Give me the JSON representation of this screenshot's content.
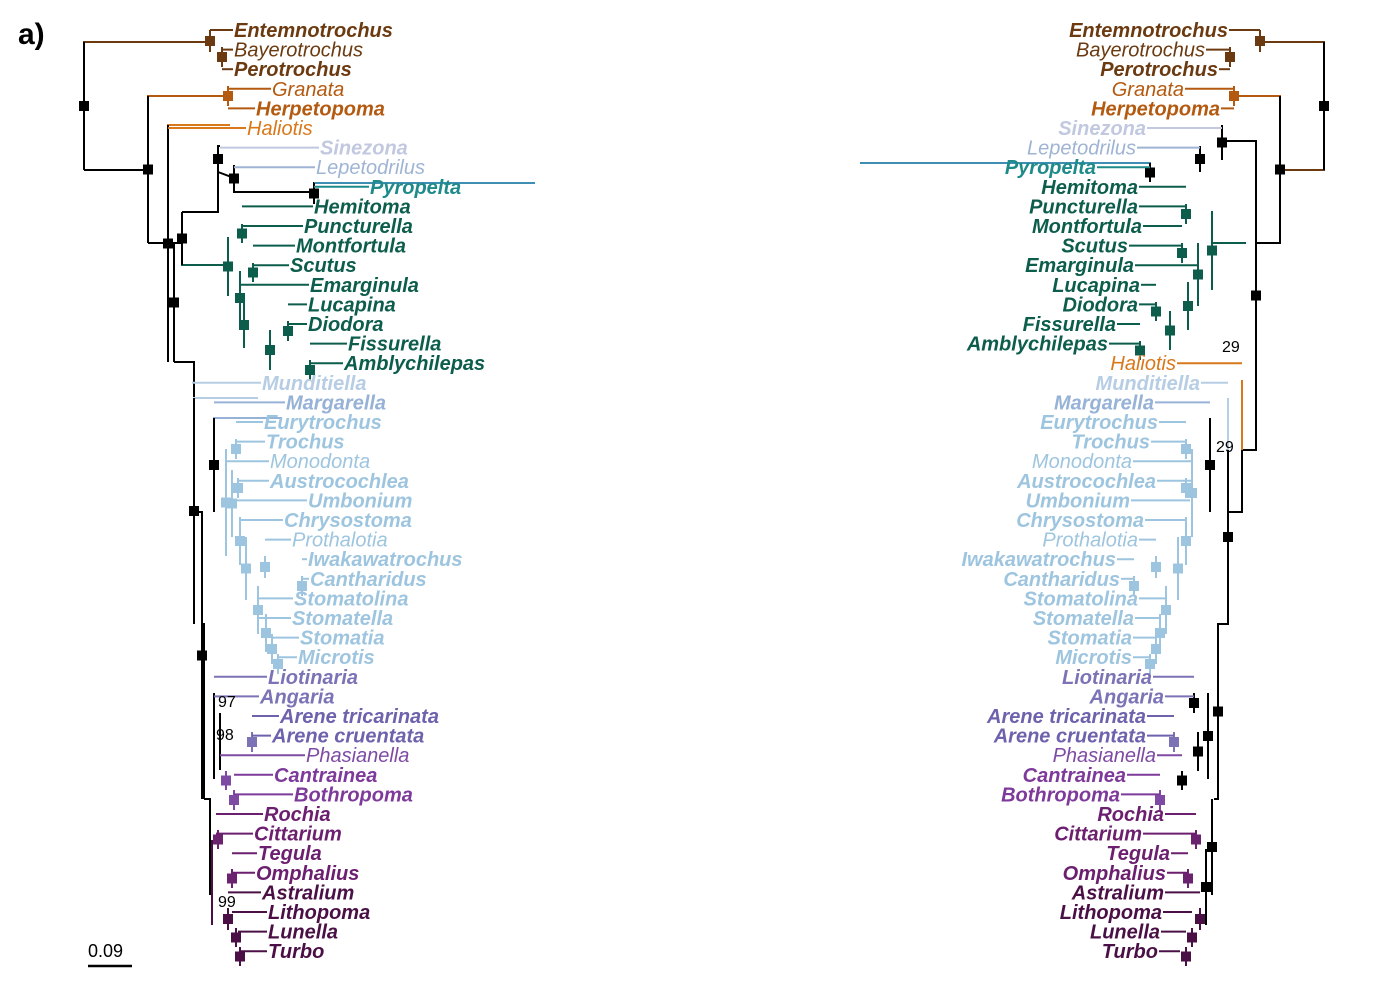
{
  "panel_label": "a)",
  "scale_bar_label": "0.09",
  "colors": {
    "black": "#000000",
    "pleuro": "#6b3a10",
    "neomph": "#b35a10",
    "haliotis": "#d9781a",
    "sinezona": "#c2c8e0",
    "lepeto": "#9fb4d4",
    "pyropelta": "#3f8fb5",
    "fissurellid": "#0d5d4d",
    "trochid": "#9ec5df",
    "munditiella": "#b7cde4",
    "margarella": "#96b2d6",
    "liotiid": "#7b73b5",
    "phasianellid": "#7e4aa3",
    "tegulid": "#6b2370",
    "turbinid": "#4a1046"
  },
  "left_tree": {
    "tips": [
      {
        "name": "Entemnotrochus",
        "bold": true,
        "color": "#6b3a10"
      },
      {
        "name": "Bayerotrochus",
        "bold": false,
        "color": "#6b3a10"
      },
      {
        "name": "Perotrochus",
        "bold": true,
        "color": "#6b3a10"
      },
      {
        "name": "Granata",
        "bold": false,
        "color": "#b35a10"
      },
      {
        "name": "Herpetopoma",
        "bold": true,
        "color": "#b35a10"
      },
      {
        "name": "Haliotis",
        "bold": false,
        "color": "#d9781a"
      },
      {
        "name": "Sinezona",
        "bold": true,
        "color": "#c2c8e0"
      },
      {
        "name": "Lepetodrilus",
        "bold": false,
        "color": "#9fb4d4"
      },
      {
        "name": "Pyropelta",
        "bold": true,
        "color": "#1f8a8a"
      },
      {
        "name": "Hemitoma",
        "bold": true,
        "color": "#0d5d4d"
      },
      {
        "name": "Puncturella",
        "bold": true,
        "color": "#0d5d4d"
      },
      {
        "name": "Montfortula",
        "bold": true,
        "color": "#0d5d4d"
      },
      {
        "name": "Scutus",
        "bold": true,
        "color": "#0d5d4d"
      },
      {
        "name": "Emarginula",
        "bold": true,
        "color": "#0d5d4d"
      },
      {
        "name": "Lucapina",
        "bold": true,
        "color": "#0d5d4d"
      },
      {
        "name": "Diodora",
        "bold": true,
        "color": "#0d5d4d"
      },
      {
        "name": "Fissurella",
        "bold": true,
        "color": "#0d5d4d"
      },
      {
        "name": "Amblychilepas",
        "bold": true,
        "color": "#0d5d4d"
      },
      {
        "name": "Munditiella",
        "bold": true,
        "color": "#b7cde4"
      },
      {
        "name": "Margarella",
        "bold": true,
        "color": "#96b2d6"
      },
      {
        "name": "Eurytrochus",
        "bold": true,
        "color": "#9ec5df"
      },
      {
        "name": "Trochus",
        "bold": true,
        "color": "#9ec5df"
      },
      {
        "name": "Monodonta",
        "bold": false,
        "color": "#9ec5df"
      },
      {
        "name": "Austrocochlea",
        "bold": true,
        "color": "#9ec5df"
      },
      {
        "name": "Umbonium",
        "bold": true,
        "color": "#9ec5df"
      },
      {
        "name": "Chrysostoma",
        "bold": true,
        "color": "#9ec5df"
      },
      {
        "name": "Prothalotia",
        "bold": false,
        "color": "#9ec5df"
      },
      {
        "name": "Iwakawatrochus",
        "bold": true,
        "color": "#9ec5df"
      },
      {
        "name": "Cantharidus",
        "bold": true,
        "color": "#9ec5df"
      },
      {
        "name": "Stomatolina",
        "bold": true,
        "color": "#9ec5df"
      },
      {
        "name": "Stomatella",
        "bold": true,
        "color": "#9ec5df"
      },
      {
        "name": "Stomatia",
        "bold": true,
        "color": "#9ec5df"
      },
      {
        "name": "Microtis",
        "bold": true,
        "color": "#9ec5df"
      },
      {
        "name": "Liotinaria",
        "bold": true,
        "color": "#7b73b5"
      },
      {
        "name": "Angaria",
        "bold": true,
        "color": "#7b73b5"
      },
      {
        "name": "Arene tricarinata",
        "bold": true,
        "color": "#6e62ad"
      },
      {
        "name": "Arene cruentata",
        "bold": true,
        "color": "#6e62ad"
      },
      {
        "name": "Phasianella",
        "bold": false,
        "color": "#7e4aa3"
      },
      {
        "name": "Cantrainea",
        "bold": true,
        "color": "#7e3a9a"
      },
      {
        "name": "Bothropoma",
        "bold": true,
        "color": "#7e3a9a"
      },
      {
        "name": "Rochia",
        "bold": true,
        "color": "#6b1f6e"
      },
      {
        "name": "Cittarium",
        "bold": true,
        "color": "#6b1f6e"
      },
      {
        "name": "Tegula",
        "bold": true,
        "color": "#6b1f6e"
      },
      {
        "name": "Omphalius",
        "bold": true,
        "color": "#6b1f6e"
      },
      {
        "name": "Astralium",
        "bold": true,
        "color": "#4a1046"
      },
      {
        "name": "Lithopoma",
        "bold": true,
        "color": "#4a1046"
      },
      {
        "name": "Lunella",
        "bold": true,
        "color": "#4a1046"
      },
      {
        "name": "Turbo",
        "bold": true,
        "color": "#4a1046"
      }
    ],
    "support_labels": [
      "97",
      "98",
      "99"
    ]
  },
  "right_tree": {
    "tips": [
      {
        "name": "Entemnotrochus",
        "bold": true,
        "color": "#6b3a10"
      },
      {
        "name": "Bayerotrochus",
        "bold": false,
        "color": "#6b3a10"
      },
      {
        "name": "Perotrochus",
        "bold": true,
        "color": "#6b3a10"
      },
      {
        "name": "Granata",
        "bold": false,
        "color": "#b35a10"
      },
      {
        "name": "Herpetopoma",
        "bold": true,
        "color": "#b35a10"
      },
      {
        "name": "Sinezona",
        "bold": true,
        "color": "#c2c8e0"
      },
      {
        "name": "Lepetodrilus",
        "bold": false,
        "color": "#9fb4d4"
      },
      {
        "name": "Pyropelta",
        "bold": true,
        "color": "#1f8a8a"
      },
      {
        "name": "Hemitoma",
        "bold": true,
        "color": "#0d5d4d"
      },
      {
        "name": "Puncturella",
        "bold": true,
        "color": "#0d5d4d"
      },
      {
        "name": "Montfortula",
        "bold": true,
        "color": "#0d5d4d"
      },
      {
        "name": "Scutus",
        "bold": true,
        "color": "#0d5d4d"
      },
      {
        "name": "Emarginula",
        "bold": true,
        "color": "#0d5d4d"
      },
      {
        "name": "Lucapina",
        "bold": true,
        "color": "#0d5d4d"
      },
      {
        "name": "Diodora",
        "bold": true,
        "color": "#0d5d4d"
      },
      {
        "name": "Fissurella",
        "bold": true,
        "color": "#0d5d4d"
      },
      {
        "name": "Amblychilepas",
        "bold": true,
        "color": "#0d5d4d"
      },
      {
        "name": "Haliotis",
        "bold": false,
        "color": "#d9781a"
      },
      {
        "name": "Munditiella",
        "bold": true,
        "color": "#b7cde4"
      },
      {
        "name": "Margarella",
        "bold": true,
        "color": "#96b2d6"
      },
      {
        "name": "Eurytrochus",
        "bold": true,
        "color": "#9ec5df"
      },
      {
        "name": "Trochus",
        "bold": true,
        "color": "#9ec5df"
      },
      {
        "name": "Monodonta",
        "bold": false,
        "color": "#9ec5df"
      },
      {
        "name": "Austrocochlea",
        "bold": true,
        "color": "#9ec5df"
      },
      {
        "name": "Umbonium",
        "bold": true,
        "color": "#9ec5df"
      },
      {
        "name": "Chrysostoma",
        "bold": true,
        "color": "#9ec5df"
      },
      {
        "name": "Prothalotia",
        "bold": false,
        "color": "#9ec5df"
      },
      {
        "name": "Iwakawatrochus",
        "bold": true,
        "color": "#9ec5df"
      },
      {
        "name": "Cantharidus",
        "bold": true,
        "color": "#9ec5df"
      },
      {
        "name": "Stomatolina",
        "bold": true,
        "color": "#9ec5df"
      },
      {
        "name": "Stomatella",
        "bold": true,
        "color": "#9ec5df"
      },
      {
        "name": "Stomatia",
        "bold": true,
        "color": "#9ec5df"
      },
      {
        "name": "Microtis",
        "bold": true,
        "color": "#9ec5df"
      },
      {
        "name": "Liotinaria",
        "bold": true,
        "color": "#7b73b5"
      },
      {
        "name": "Angaria",
        "bold": true,
        "color": "#7b73b5"
      },
      {
        "name": "Arene tricarinata",
        "bold": true,
        "color": "#6e62ad"
      },
      {
        "name": "Arene cruentata",
        "bold": true,
        "color": "#6e62ad"
      },
      {
        "name": "Phasianella",
        "bold": false,
        "color": "#7e4aa3"
      },
      {
        "name": "Cantrainea",
        "bold": true,
        "color": "#7e3a9a"
      },
      {
        "name": "Bothropoma",
        "bold": true,
        "color": "#7e3a9a"
      },
      {
        "name": "Rochia",
        "bold": true,
        "color": "#6b1f6e"
      },
      {
        "name": "Cittarium",
        "bold": true,
        "color": "#6b1f6e"
      },
      {
        "name": "Tegula",
        "bold": true,
        "color": "#6b1f6e"
      },
      {
        "name": "Omphalius",
        "bold": true,
        "color": "#6b1f6e"
      },
      {
        "name": "Astralium",
        "bold": true,
        "color": "#4a1046"
      },
      {
        "name": "Lithopoma",
        "bold": true,
        "color": "#4a1046"
      },
      {
        "name": "Lunella",
        "bold": true,
        "color": "#4a1046"
      },
      {
        "name": "Turbo",
        "bold": true,
        "color": "#4a1046"
      }
    ],
    "support_labels": [
      "29",
      "29"
    ]
  }
}
